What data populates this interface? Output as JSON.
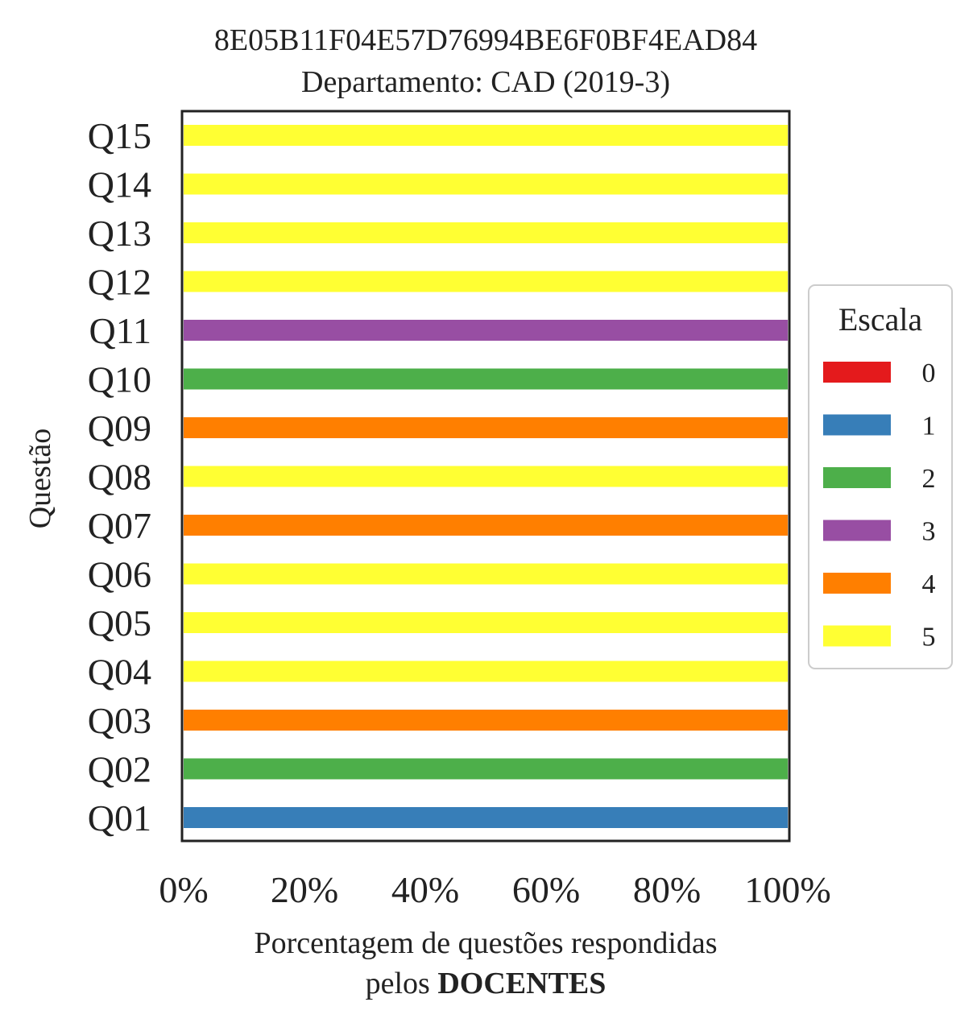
{
  "chart_data": {
    "type": "bar",
    "orientation": "horizontal",
    "stacked": true,
    "title": "8E05B11F04E57D76994BE6F0BF4EAD84",
    "subtitle": "Departamento: CAD (2019-3)",
    "ylabel": "Questão",
    "xlabel_line1": "Porcentagem de questões respondidas",
    "xlabel_line2_prefix": "pelos",
    "xlabel_line2_bold": "DOCENTES",
    "xlim": [
      0,
      100
    ],
    "xticks": [
      "0%",
      "20%",
      "40%",
      "60%",
      "80%",
      "100%"
    ],
    "categories": [
      "Q01",
      "Q02",
      "Q03",
      "Q04",
      "Q05",
      "Q06",
      "Q07",
      "Q08",
      "Q09",
      "Q10",
      "Q11",
      "Q12",
      "Q13",
      "Q14",
      "Q15"
    ],
    "legend": {
      "title": "Escala",
      "placement": "center-right"
    },
    "series": [
      {
        "name": "0",
        "color": "#e41a1c",
        "values": [
          0,
          0,
          0,
          0,
          0,
          0,
          0,
          0,
          0,
          0,
          0,
          0,
          0,
          0,
          0
        ]
      },
      {
        "name": "1",
        "color": "#377eb8",
        "values": [
          100,
          0,
          0,
          0,
          0,
          0,
          0,
          0,
          0,
          0,
          0,
          0,
          0,
          0,
          0
        ]
      },
      {
        "name": "2",
        "color": "#4daf4a",
        "values": [
          0,
          100,
          0,
          0,
          0,
          0,
          0,
          0,
          0,
          100,
          0,
          0,
          0,
          0,
          0
        ]
      },
      {
        "name": "3",
        "color": "#984ea3",
        "values": [
          0,
          0,
          0,
          0,
          0,
          0,
          0,
          0,
          0,
          0,
          100,
          0,
          0,
          0,
          0
        ]
      },
      {
        "name": "4",
        "color": "#ff7f00",
        "values": [
          0,
          0,
          100,
          0,
          0,
          0,
          100,
          0,
          100,
          0,
          0,
          0,
          0,
          0,
          0
        ]
      },
      {
        "name": "5",
        "color": "#ffff33",
        "values": [
          0,
          0,
          0,
          100,
          100,
          100,
          0,
          100,
          0,
          0,
          0,
          100,
          100,
          100,
          100
        ]
      }
    ]
  }
}
